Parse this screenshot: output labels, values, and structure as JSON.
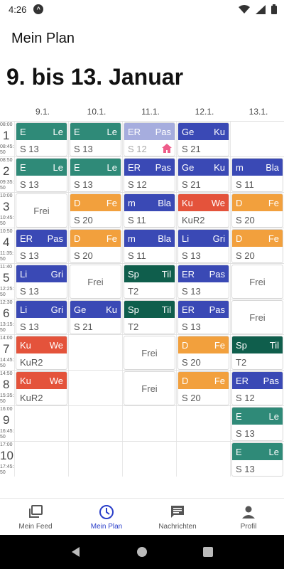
{
  "status": {
    "time": "4:26"
  },
  "appbar": {
    "title": "Mein Plan"
  },
  "heading": "9. bis 13. Januar",
  "days": [
    "9.1.",
    "10.1.",
    "11.1.",
    "12.1.",
    "13.1."
  ],
  "periods": [
    {
      "num": "1",
      "start": "08:00",
      "end": "08:45:",
      "end_sec": "50"
    },
    {
      "num": "2",
      "start": "08:50",
      "end": "09:35:",
      "end_sec": "50"
    },
    {
      "num": "3",
      "start": "10:00",
      "end": "10:45:",
      "end_sec": "50"
    },
    {
      "num": "4",
      "start": "10:50",
      "end": "11:35:",
      "end_sec": "50"
    },
    {
      "num": "5",
      "start": "11:40",
      "end": "12:25:",
      "end_sec": "50"
    },
    {
      "num": "6",
      "start": "12:30",
      "end": "13:15:",
      "end_sec": "50"
    },
    {
      "num": "7",
      "start": "14:00",
      "end": "14:45:",
      "end_sec": "50"
    },
    {
      "num": "8",
      "start": "14:50",
      "end": "15:35:",
      "end_sec": "50"
    },
    {
      "num": "9",
      "start": "16:00",
      "end": "16:45:",
      "end_sec": "50"
    },
    {
      "num": "10",
      "start": "17:00",
      "end": "17:45:",
      "end_sec": "50"
    }
  ],
  "colors": {
    "teal": "#2f8a78",
    "blue": "#3a49b5",
    "orange": "#f2a03d",
    "red": "#e4533b",
    "darkgreen": "#0f5e4c",
    "faded_blue": "#7f8cd6",
    "home_icon": "#ee5c8a",
    "active": "#2a3ec9"
  },
  "cells": [
    {
      "day": 0,
      "period": 0,
      "kind": "lesson",
      "subject": "E",
      "teacher": "Le",
      "room": "S 13",
      "color": "teal"
    },
    {
      "day": 1,
      "period": 0,
      "kind": "lesson",
      "subject": "E",
      "teacher": "Le",
      "room": "S 13",
      "color": "teal"
    },
    {
      "day": 2,
      "period": 0,
      "kind": "lesson",
      "subject": "ER",
      "teacher": "Pas",
      "room": "S 12",
      "color": "blue",
      "faded": true,
      "home": true
    },
    {
      "day": 3,
      "period": 0,
      "kind": "lesson",
      "subject": "Ge",
      "teacher": "Ku",
      "room": "S 21",
      "color": "blue"
    },
    {
      "day": 0,
      "period": 1,
      "kind": "lesson",
      "subject": "E",
      "teacher": "Le",
      "room": "S 13",
      "color": "teal"
    },
    {
      "day": 1,
      "period": 1,
      "kind": "lesson",
      "subject": "E",
      "teacher": "Le",
      "room": "S 13",
      "color": "teal"
    },
    {
      "day": 2,
      "period": 1,
      "kind": "lesson",
      "subject": "ER",
      "teacher": "Pas",
      "room": "S 12",
      "color": "blue"
    },
    {
      "day": 3,
      "period": 1,
      "kind": "lesson",
      "subject": "Ge",
      "teacher": "Ku",
      "room": "S 21",
      "color": "blue"
    },
    {
      "day": 4,
      "period": 1,
      "kind": "lesson",
      "subject": "m",
      "teacher": "Bla",
      "room": "S 11",
      "color": "blue"
    },
    {
      "day": 0,
      "period": 2,
      "kind": "free",
      "label": "Frei"
    },
    {
      "day": 1,
      "period": 2,
      "kind": "lesson",
      "subject": "D",
      "teacher": "Fe",
      "room": "S 20",
      "color": "orange"
    },
    {
      "day": 2,
      "period": 2,
      "kind": "lesson",
      "subject": "m",
      "teacher": "Bla",
      "room": "S 11",
      "color": "blue"
    },
    {
      "day": 3,
      "period": 2,
      "kind": "lesson",
      "subject": "Ku",
      "teacher": "We",
      "room": "KuR2",
      "color": "red"
    },
    {
      "day": 4,
      "period": 2,
      "kind": "lesson",
      "subject": "D",
      "teacher": "Fe",
      "room": "S 20",
      "color": "orange"
    },
    {
      "day": 0,
      "period": 3,
      "kind": "lesson",
      "subject": "ER",
      "teacher": "Pas",
      "room": "S 13",
      "color": "blue"
    },
    {
      "day": 1,
      "period": 3,
      "kind": "lesson",
      "subject": "D",
      "teacher": "Fe",
      "room": "S 20",
      "color": "orange"
    },
    {
      "day": 2,
      "period": 3,
      "kind": "lesson",
      "subject": "m",
      "teacher": "Bla",
      "room": "S 11",
      "color": "blue"
    },
    {
      "day": 3,
      "period": 3,
      "kind": "lesson",
      "subject": "Li",
      "teacher": "Gri",
      "room": "S 13",
      "color": "blue"
    },
    {
      "day": 4,
      "period": 3,
      "kind": "lesson",
      "subject": "D",
      "teacher": "Fe",
      "room": "S 20",
      "color": "orange"
    },
    {
      "day": 0,
      "period": 4,
      "kind": "lesson",
      "subject": "Li",
      "teacher": "Gri",
      "room": "S 13",
      "color": "blue"
    },
    {
      "day": 1,
      "period": 4,
      "kind": "free",
      "label": "Frei"
    },
    {
      "day": 2,
      "period": 4,
      "kind": "lesson",
      "subject": "Sp",
      "teacher": "Til",
      "room": "T2",
      "color": "darkgreen"
    },
    {
      "day": 3,
      "period": 4,
      "kind": "lesson",
      "subject": "ER",
      "teacher": "Pas",
      "room": "S 13",
      "color": "blue"
    },
    {
      "day": 4,
      "period": 4,
      "kind": "free",
      "label": "Frei"
    },
    {
      "day": 0,
      "period": 5,
      "kind": "lesson",
      "subject": "Li",
      "teacher": "Gri",
      "room": "S 13",
      "color": "blue"
    },
    {
      "day": 1,
      "period": 5,
      "kind": "lesson",
      "subject": "Ge",
      "teacher": "Ku",
      "room": "S 21",
      "color": "blue"
    },
    {
      "day": 2,
      "period": 5,
      "kind": "lesson",
      "subject": "Sp",
      "teacher": "Til",
      "room": "T2",
      "color": "darkgreen"
    },
    {
      "day": 3,
      "period": 5,
      "kind": "lesson",
      "subject": "ER",
      "teacher": "Pas",
      "room": "S 13",
      "color": "blue"
    },
    {
      "day": 4,
      "period": 5,
      "kind": "free",
      "label": "Frei"
    },
    {
      "day": 0,
      "period": 6,
      "kind": "lesson",
      "subject": "Ku",
      "teacher": "We",
      "room": "KuR2",
      "color": "red"
    },
    {
      "day": 2,
      "period": 6,
      "kind": "free",
      "label": "Frei"
    },
    {
      "day": 3,
      "period": 6,
      "kind": "lesson",
      "subject": "D",
      "teacher": "Fe",
      "room": "S 20",
      "color": "orange"
    },
    {
      "day": 4,
      "period": 6,
      "kind": "lesson",
      "subject": "Sp",
      "teacher": "Til",
      "room": "T2",
      "color": "darkgreen"
    },
    {
      "day": 0,
      "period": 7,
      "kind": "lesson",
      "subject": "Ku",
      "teacher": "We",
      "room": "KuR2",
      "color": "red"
    },
    {
      "day": 2,
      "period": 7,
      "kind": "free",
      "label": "Frei"
    },
    {
      "day": 3,
      "period": 7,
      "kind": "lesson",
      "subject": "D",
      "teacher": "Fe",
      "room": "S 20",
      "color": "orange"
    },
    {
      "day": 4,
      "period": 7,
      "kind": "lesson",
      "subject": "ER",
      "teacher": "Pas",
      "room": "S 12",
      "color": "blue"
    },
    {
      "day": 4,
      "period": 8,
      "kind": "lesson",
      "subject": "E",
      "teacher": "Le",
      "room": "S 13",
      "color": "teal"
    },
    {
      "day": 4,
      "period": 9,
      "kind": "lesson",
      "subject": "E",
      "teacher": "Le",
      "room": "S 13",
      "color": "teal"
    }
  ],
  "nav": [
    {
      "label": "Mein Feed",
      "icon": "feed-icon",
      "active": false
    },
    {
      "label": "Mein Plan",
      "icon": "clock-icon",
      "active": true
    },
    {
      "label": "Nachrichten",
      "icon": "message-icon",
      "active": false
    },
    {
      "label": "Profil",
      "icon": "profile-icon",
      "active": false
    }
  ]
}
